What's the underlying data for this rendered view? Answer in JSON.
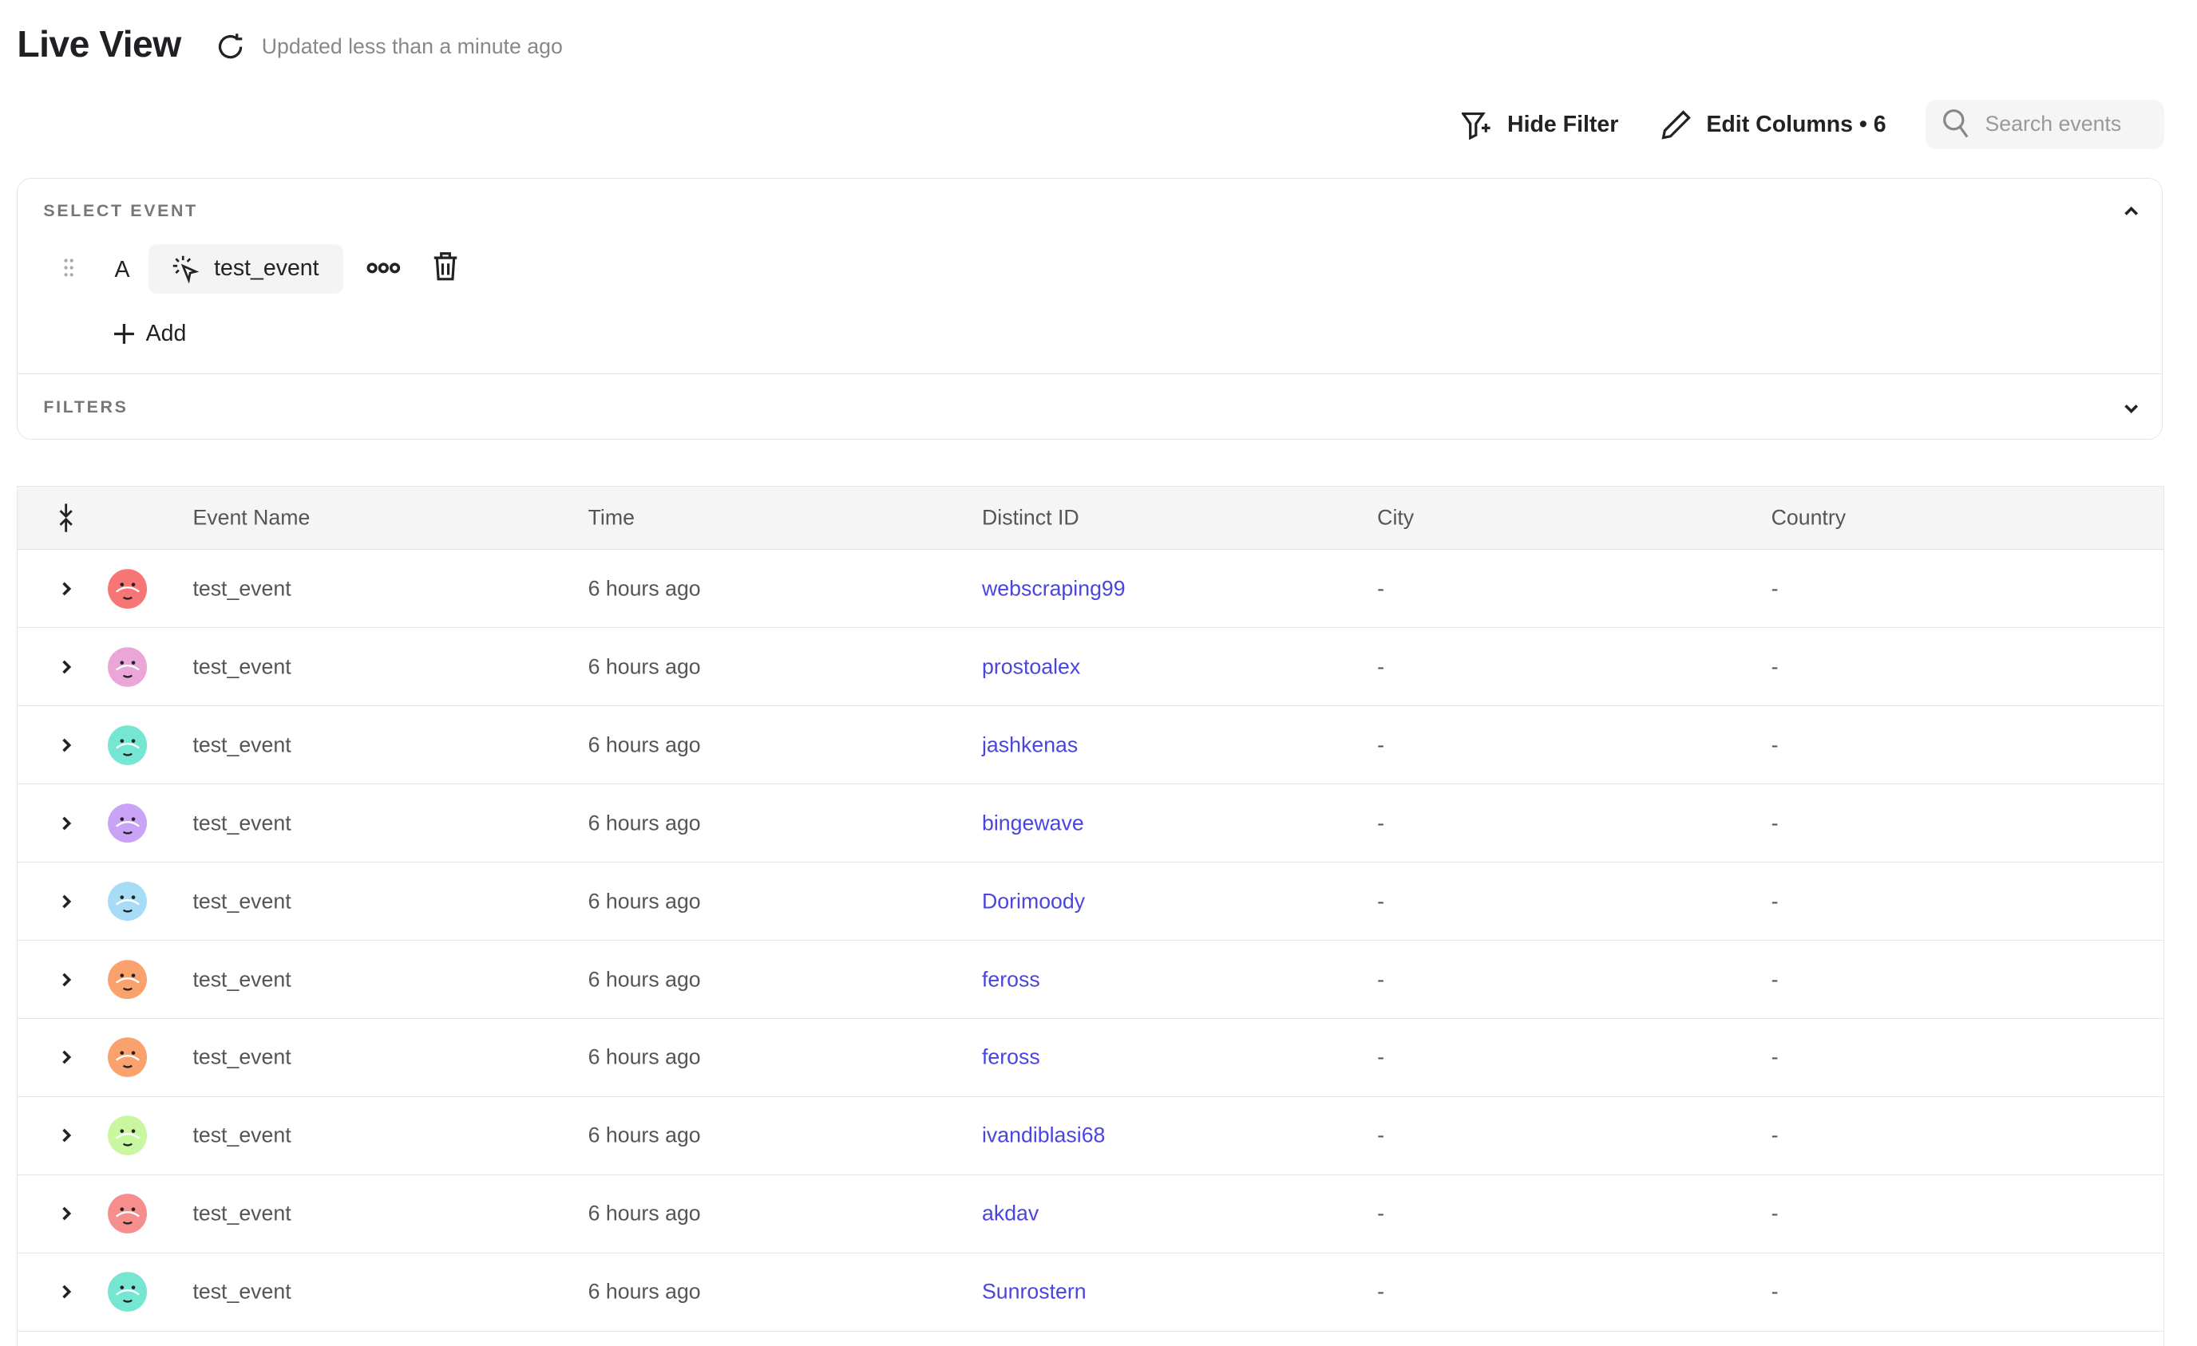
{
  "header": {
    "title": "Live View",
    "updated": "Updated less than a minute ago"
  },
  "toolbar": {
    "hide_filter": "Hide Filter",
    "edit_columns": "Edit Columns • 6",
    "search_placeholder": "Search events",
    "search_value": ""
  },
  "panel": {
    "select_event_label": "SELECT EVENT",
    "event_letter": "A",
    "event_name": "test_event",
    "add_label": "Add",
    "filters_label": "FILTERS"
  },
  "table": {
    "columns": [
      "Event Name",
      "Time",
      "Distinct ID",
      "City",
      "Country"
    ],
    "rows": [
      {
        "event": "test_event",
        "time": "6 hours ago",
        "distinct_id": "webscraping99",
        "city": "-",
        "country": "-",
        "avatar_color": "#f87575"
      },
      {
        "event": "test_event",
        "time": "6 hours ago",
        "distinct_id": "prostoalex",
        "city": "-",
        "country": "-",
        "avatar_color": "#eaa6d6"
      },
      {
        "event": "test_event",
        "time": "6 hours ago",
        "distinct_id": "jashkenas",
        "city": "-",
        "country": "-",
        "avatar_color": "#74e6d1"
      },
      {
        "event": "test_event",
        "time": "6 hours ago",
        "distinct_id": "bingewave",
        "city": "-",
        "country": "-",
        "avatar_color": "#c9a3f6"
      },
      {
        "event": "test_event",
        "time": "6 hours ago",
        "distinct_id": "Dorimoody",
        "city": "-",
        "country": "-",
        "avatar_color": "#a6dcf6"
      },
      {
        "event": "test_event",
        "time": "6 hours ago",
        "distinct_id": "feross",
        "city": "-",
        "country": "-",
        "avatar_color": "#f9a26e"
      },
      {
        "event": "test_event",
        "time": "6 hours ago",
        "distinct_id": "feross",
        "city": "-",
        "country": "-",
        "avatar_color": "#f9a26e"
      },
      {
        "event": "test_event",
        "time": "6 hours ago",
        "distinct_id": "ivandiblasi68",
        "city": "-",
        "country": "-",
        "avatar_color": "#c8f7a0"
      },
      {
        "event": "test_event",
        "time": "6 hours ago",
        "distinct_id": "akdav",
        "city": "-",
        "country": "-",
        "avatar_color": "#f78e8e"
      },
      {
        "event": "test_event",
        "time": "6 hours ago",
        "distinct_id": "Sunrostern",
        "city": "-",
        "country": "-",
        "avatar_color": "#74e6d1"
      }
    ]
  },
  "colors": {
    "link": "#4b45e0",
    "header_bg": "#f5f5f5",
    "border": "#e6e6e6"
  }
}
